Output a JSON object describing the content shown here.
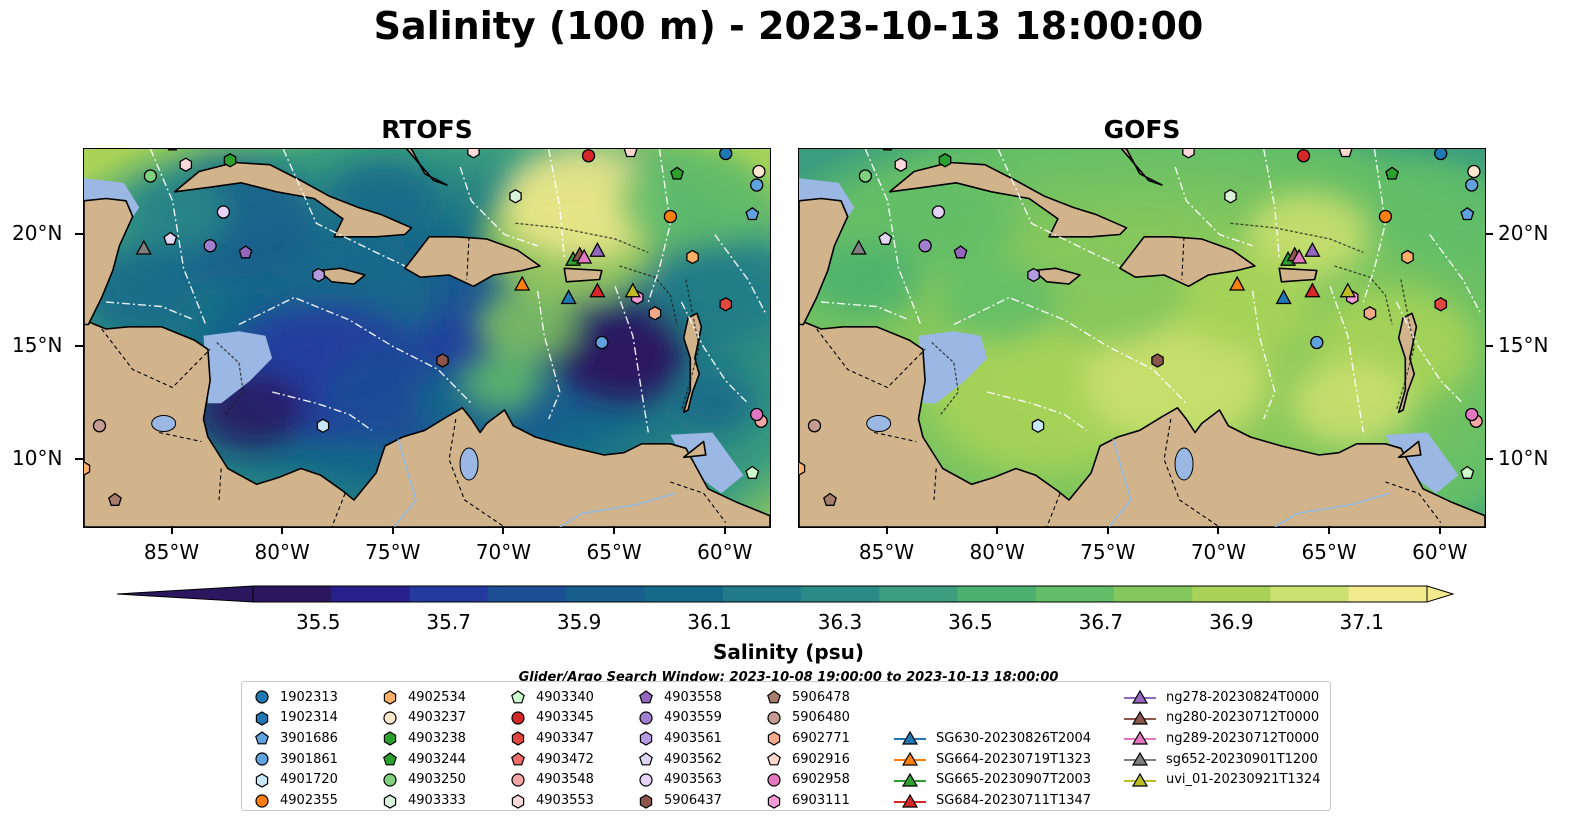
{
  "title": "Salinity (100 m) - 2023-10-13 18:00:00",
  "panels": [
    {
      "name": "rtofs",
      "title": "RTOFS",
      "style": "rtofs"
    },
    {
      "name": "gofs",
      "title": "GOFS",
      "style": "gofs"
    }
  ],
  "axes": {
    "lon_ticks": [
      {
        "value": -85,
        "label": "85°W"
      },
      {
        "value": -80,
        "label": "80°W"
      },
      {
        "value": -75,
        "label": "75°W"
      },
      {
        "value": -70,
        "label": "70°W"
      },
      {
        "value": -65,
        "label": "65°W"
      },
      {
        "value": -60,
        "label": "60°W"
      }
    ],
    "lat_ticks": [
      {
        "value": 20,
        "label": "20°N"
      },
      {
        "value": 15,
        "label": "15°N"
      },
      {
        "value": 10,
        "label": "10°N"
      }
    ],
    "lon_range": [
      -89,
      -58
    ],
    "lat_range": [
      7,
      23.8
    ]
  },
  "colorbar": {
    "label": "Salinity (psu)",
    "range": [
      35.4,
      37.2
    ],
    "extend": "both",
    "ticks": [
      {
        "value": 35.5,
        "label": "35.5"
      },
      {
        "value": 35.7,
        "label": "35.7"
      },
      {
        "value": 35.9,
        "label": "35.9"
      },
      {
        "value": 36.1,
        "label": "36.1"
      },
      {
        "value": 36.3,
        "label": "36.3"
      },
      {
        "value": 36.5,
        "label": "36.5"
      },
      {
        "value": 36.7,
        "label": "36.7"
      },
      {
        "value": 36.9,
        "label": "36.9"
      },
      {
        "value": 37.1,
        "label": "37.1"
      }
    ],
    "colors": [
      "#2a1760",
      "#27208a",
      "#243aa0",
      "#1c4e96",
      "#175e8d",
      "#146a89",
      "#1f7b87",
      "#2a8a86",
      "#3a9d7e",
      "#4bb06e",
      "#62bd68",
      "#84c75d",
      "#a8d358",
      "#cde170",
      "#f3ea8d"
    ]
  },
  "search_window_note": "Glider/Argo Search Window: 2023-10-08 19:00:00 to 2023-10-13 18:00:00",
  "markers": [
    {
      "id": "1902313",
      "lon": -60,
      "lat": 23.6,
      "color": "#1f77b4",
      "shape": "circle"
    },
    {
      "id": "1902314",
      "lon": -80,
      "lat": 24.2,
      "color": "#1f77b4",
      "shape": "hexagon"
    },
    {
      "id": "3901686",
      "lon": -58.8,
      "lat": 20.9,
      "color": "#5fa2dd",
      "shape": "pentagon"
    },
    {
      "id": "3901861",
      "lon": -58.6,
      "lat": 22.2,
      "color": "#5fa2dd",
      "shape": "circle"
    },
    {
      "id": "3901861",
      "lon": -65.6,
      "lat": 15.2,
      "color": "#5fa2dd",
      "shape": "circle"
    },
    {
      "id": "4901720",
      "lon": -78.2,
      "lat": 11.5,
      "color": "#c6e7f7",
      "shape": "hexagon"
    },
    {
      "id": "4902355",
      "lon": -62.5,
      "lat": 20.8,
      "color": "#ff7f0e",
      "shape": "circle"
    },
    {
      "id": "4902534",
      "lon": -61.5,
      "lat": 19,
      "color": "#ffb066",
      "shape": "hexagon"
    },
    {
      "id": "4902534",
      "lon": -89,
      "lat": 9.6,
      "color": "#ffb066",
      "shape": "hexagon"
    },
    {
      "id": "4903237",
      "lon": -58.5,
      "lat": 22.8,
      "color": "#ffe6cc",
      "shape": "circle"
    },
    {
      "id": "4903238",
      "lon": -82.4,
      "lat": 23.3,
      "color": "#2ca02c",
      "shape": "hexagon"
    },
    {
      "id": "4903244",
      "lon": -62.2,
      "lat": 22.7,
      "color": "#2ca02c",
      "shape": "pentagon"
    },
    {
      "id": "4903250",
      "lon": -86,
      "lat": 22.6,
      "color": "#7fd07f",
      "shape": "circle"
    },
    {
      "id": "4903333",
      "lon": -69.5,
      "lat": 21.7,
      "color": "#d9f2d9",
      "shape": "hexagon"
    },
    {
      "id": "4903340",
      "lon": -58.8,
      "lat": 9.4,
      "color": "#ccffcc",
      "shape": "pentagon"
    },
    {
      "id": "4903345",
      "lon": -66.2,
      "lat": 23.5,
      "color": "#d62728",
      "shape": "circle"
    },
    {
      "id": "4903347",
      "lon": -60,
      "lat": 16.9,
      "color": "#e0473f",
      "shape": "hexagon"
    },
    {
      "id": "4903472",
      "lon": -85,
      "lat": 24,
      "color": "#f26b6b",
      "shape": "pentagon"
    },
    {
      "id": "4903548",
      "lon": -58.4,
      "lat": 11.7,
      "color": "#f4a6a6",
      "shape": "circle"
    },
    {
      "id": "4903553",
      "lon": -84.4,
      "lat": 23.1,
      "color": "#ffd9d9",
      "shape": "hexagon"
    },
    {
      "id": "4903553",
      "lon": -71.4,
      "lat": 23.7,
      "color": "#ffd9d9",
      "shape": "hexagon"
    },
    {
      "id": "4903558",
      "lon": -81.7,
      "lat": 19.2,
      "color": "#9467bd",
      "shape": "pentagon"
    },
    {
      "id": "4903559",
      "lon": -83.3,
      "lat": 19.5,
      "color": "#a07fce",
      "shape": "circle"
    },
    {
      "id": "4903561",
      "lon": -78.4,
      "lat": 18.2,
      "color": "#b49ae0",
      "shape": "hexagon"
    },
    {
      "id": "4903562",
      "lon": -85.1,
      "lat": 19.8,
      "color": "#e1d5f5",
      "shape": "pentagon"
    },
    {
      "id": "4903563",
      "lon": -82.7,
      "lat": 21,
      "color": "#e6d3f7",
      "shape": "circle"
    },
    {
      "id": "5906437",
      "lon": -72.8,
      "lat": 14.4,
      "color": "#8c564b",
      "shape": "hexagon"
    },
    {
      "id": "5906478",
      "lon": -87.6,
      "lat": 8.2,
      "color": "#a77e6b",
      "shape": "pentagon"
    },
    {
      "id": "5906480",
      "lon": -88.3,
      "lat": 11.5,
      "color": "#c49c94",
      "shape": "circle"
    },
    {
      "id": "6902771",
      "lon": -63.2,
      "lat": 16.5,
      "color": "#f2a98a",
      "shape": "hexagon"
    },
    {
      "id": "6902916",
      "lon": -64.3,
      "lat": 23.7,
      "color": "#ffd7cc",
      "shape": "pentagon"
    },
    {
      "id": "6902958",
      "lon": -58.6,
      "lat": 12,
      "color": "#e377c2",
      "shape": "circle"
    },
    {
      "id": "6903111",
      "lon": -64,
      "lat": 17.2,
      "color": "#f39bd9",
      "shape": "hexagon"
    }
  ],
  "gliders": [
    {
      "id": "SG630-20230826T2004",
      "lon": -67.1,
      "lat": 17.2,
      "color": "#1f77b4"
    },
    {
      "id": "SG664-20230719T1323",
      "lon": -69.2,
      "lat": 17.8,
      "color": "#ff7f0e"
    },
    {
      "id": "SG665-20230907T2003",
      "lon": -66.9,
      "lat": 18.9,
      "color": "#2ca02c"
    },
    {
      "id": "SG684-20230711T1347",
      "lon": -65.8,
      "lat": 17.5,
      "color": "#d62728"
    },
    {
      "id": "ng278-20230824T0000",
      "lon": -65.8,
      "lat": 19.3,
      "color": "#9467bd"
    },
    {
      "id": "ng280-20230712T0000",
      "lon": -66.6,
      "lat": 19.1,
      "color": "#8c564b"
    },
    {
      "id": "ng289-20230712T0000",
      "lon": -66.4,
      "lat": 19,
      "color": "#e377c2"
    },
    {
      "id": "sg652-20230901T1200",
      "lon": -86.3,
      "lat": 19.4,
      "color": "#7f7f7f"
    },
    {
      "id": "uvi_01-20230921T1324",
      "lon": -64.2,
      "lat": 17.5,
      "color": "#bcbd22"
    }
  ]
}
